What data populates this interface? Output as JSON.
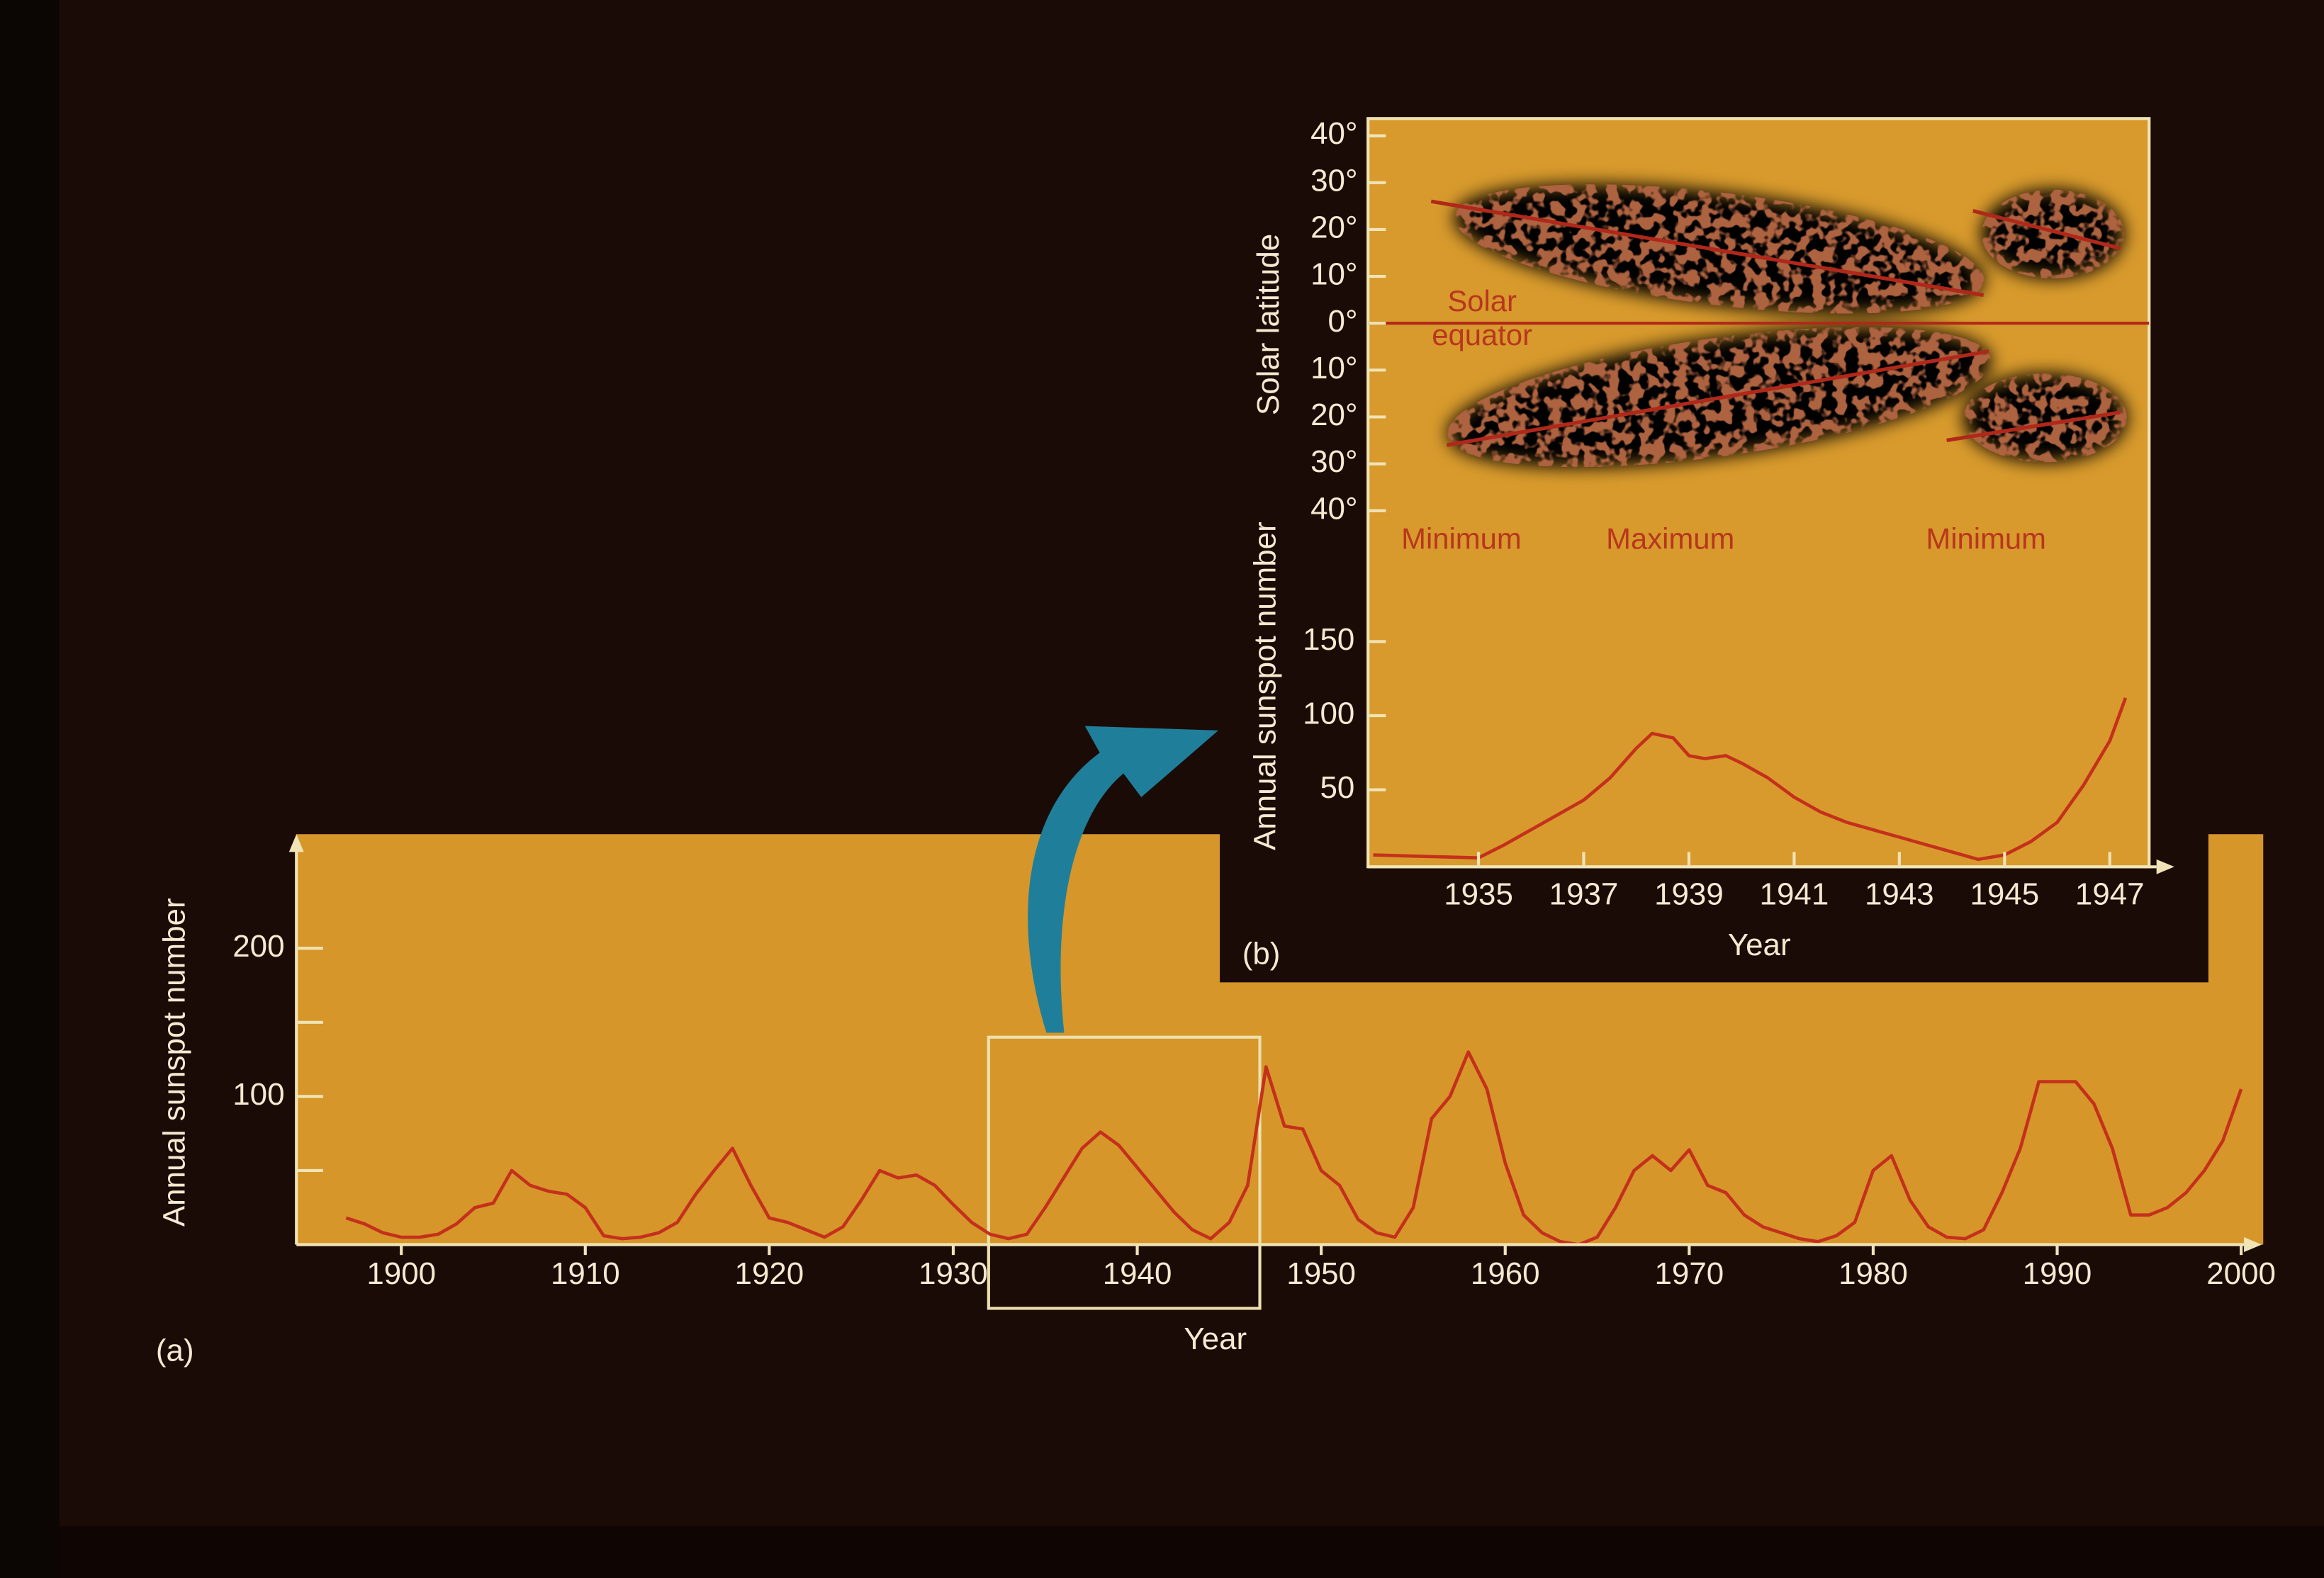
{
  "chart_data": [
    {
      "type": "line",
      "label": "(a)",
      "xlabel": "Year",
      "ylabel": "Annual sunspot number",
      "color": "#c4301c",
      "x": [
        1897,
        1898,
        1899,
        1900,
        1901,
        1902,
        1903,
        1904,
        1905,
        1906,
        1907,
        1908,
        1909,
        1910,
        1911,
        1912,
        1913,
        1914,
        1915,
        1916,
        1917,
        1918,
        1919,
        1920,
        1921,
        1922,
        1923,
        1924,
        1925,
        1926,
        1927,
        1928,
        1929,
        1930,
        1931,
        1932,
        1933,
        1934,
        1935,
        1936,
        1937,
        1938,
        1939,
        1940,
        1941,
        1942,
        1943,
        1944,
        1945,
        1946,
        1947,
        1948,
        1949,
        1950,
        1951,
        1952,
        1953,
        1954,
        1955,
        1956,
        1957,
        1958,
        1959,
        1960,
        1961,
        1962,
        1963,
        1964,
        1965,
        1966,
        1967,
        1968,
        1969,
        1970,
        1971,
        1972,
        1973,
        1974,
        1975,
        1976,
        1977,
        1978,
        1979,
        1980,
        1981,
        1982,
        1983,
        1984,
        1985,
        1986,
        1987,
        1988,
        1989,
        1990,
        1991,
        1992,
        1993,
        1994,
        1995,
        1996,
        1997,
        1998,
        1999,
        2000
      ],
      "values": [
        18,
        14,
        8,
        5,
        5,
        7,
        14,
        25,
        28,
        50,
        40,
        36,
        34,
        25,
        6,
        4,
        5,
        8,
        15,
        34,
        50,
        65,
        40,
        18,
        15,
        10,
        5,
        12,
        30,
        50,
        45,
        47,
        40,
        27,
        15,
        7,
        4,
        7,
        25,
        45,
        65,
        76,
        67,
        52,
        37,
        22,
        10,
        4,
        15,
        40,
        120,
        80,
        78,
        50,
        40,
        17,
        8,
        5,
        25,
        85,
        100,
        130,
        105,
        55,
        20,
        8,
        2,
        0,
        5,
        25,
        50,
        60,
        50,
        64,
        40,
        35,
        20,
        12,
        8,
        4,
        2,
        6,
        15,
        50,
        60,
        30,
        12,
        5,
        4,
        10,
        35,
        65,
        110,
        110,
        110,
        95,
        65,
        20,
        20,
        25,
        35,
        50,
        70,
        105
      ],
      "xlim": [
        1894.3,
        2001.2
      ],
      "ylim": [
        0,
        277
      ],
      "xticks": [
        1900,
        1910,
        1920,
        1930,
        1940,
        1950,
        1960,
        1970,
        1980,
        1990,
        2000
      ],
      "yticks": [
        100,
        200
      ],
      "yminorticks": [
        50,
        150
      ]
    },
    {
      "type": "line",
      "ylabel": "Solar latitude",
      "equator_label": "Solar equator",
      "annotations": [
        "Minimum",
        "Maximum",
        "Minimum"
      ],
      "xlim": [
        1932.9,
        1948.17
      ],
      "ylim": [
        -42,
        44
      ],
      "yticks": [
        {
          "value": 40,
          "label": "40°"
        },
        {
          "value": 30,
          "label": "30°"
        },
        {
          "value": 20,
          "label": "20°"
        },
        {
          "value": 10,
          "label": "10°"
        },
        {
          "value": 0,
          "label": "0°"
        },
        {
          "value": -10,
          "label": "10°"
        },
        {
          "value": -20,
          "label": "20°"
        },
        {
          "value": -30,
          "label": "30°"
        },
        {
          "value": -40,
          "label": "40°"
        }
      ],
      "series": [
        {
          "color": "#b0281a",
          "x": [
            1934.1,
            1944.6
          ],
          "values": [
            26,
            6
          ]
        },
        {
          "color": "#b0281a",
          "x": [
            1934.4,
            1944.7
          ],
          "values": [
            -26,
            -6
          ]
        },
        {
          "color": "#b0281a",
          "x": [
            1944.4,
            1947.2
          ],
          "values": [
            24,
            16
          ]
        },
        {
          "color": "#b0281a",
          "x": [
            1943.9,
            1947.2
          ],
          "values": [
            -25,
            -19
          ]
        }
      ]
    },
    {
      "type": "line",
      "label": "(b)",
      "xlabel": "Year",
      "ylabel": "Annual sunspot number",
      "color": "#c4301c",
      "x": [
        1933,
        1934,
        1935,
        1935.5,
        1936,
        1937,
        1937.5,
        1938,
        1938.3,
        1938.7,
        1939,
        1939.3,
        1939.7,
        1940,
        1940.5,
        1941,
        1941.5,
        1942,
        1942.5,
        1943,
        1943.5,
        1944,
        1944.5,
        1945,
        1945.5,
        1946,
        1946.5,
        1947,
        1947.3
      ],
      "values": [
        6,
        5,
        4,
        13,
        23,
        43,
        58,
        78,
        88,
        85,
        73,
        71,
        73,
        68,
        58,
        45,
        35,
        28,
        23,
        18,
        13,
        8,
        3,
        6,
        15,
        28,
        53,
        83,
        112
      ],
      "xlim": [
        1932.9,
        1948.17
      ],
      "ylim": [
        0,
        200
      ],
      "xticks": [
        1935,
        1937,
        1939,
        1941,
        1943,
        1945,
        1947
      ],
      "yticks": [
        50,
        100,
        150
      ]
    }
  ]
}
